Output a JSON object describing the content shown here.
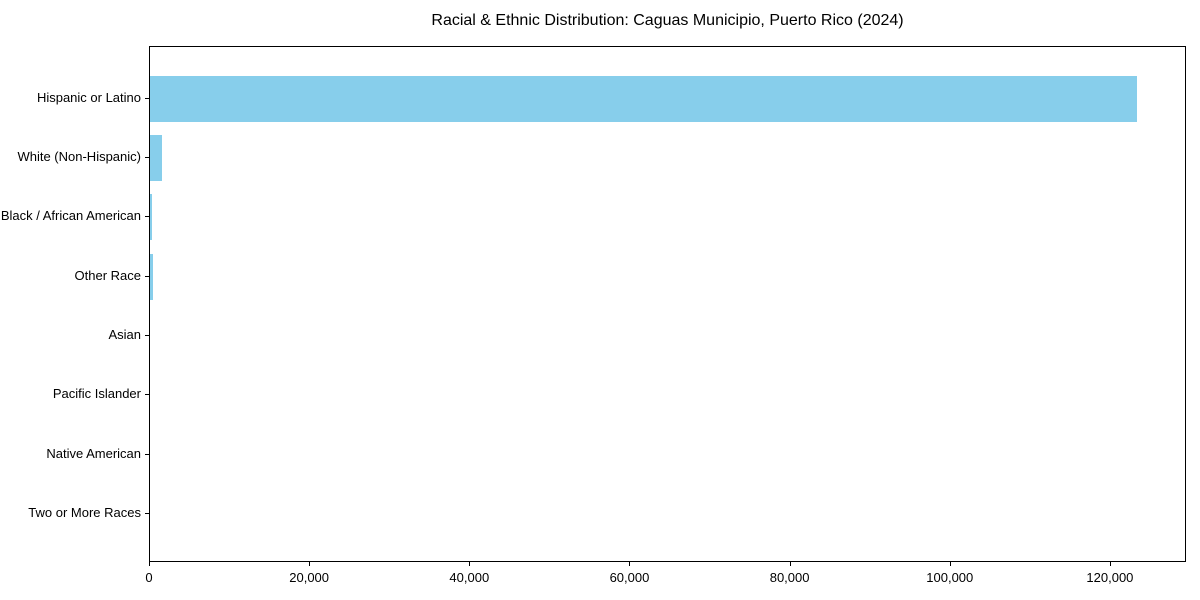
{
  "chart_data": {
    "type": "bar",
    "orientation": "horizontal",
    "title": "Racial & Ethnic Distribution: Caguas Municipio, Puerto Rico (2024)",
    "categories": [
      "Hispanic or Latino",
      "White (Non-Hispanic)",
      "Black / African American",
      "Other Race",
      "Asian",
      "Pacific Islander",
      "Native American",
      "Two or More Races"
    ],
    "values": [
      123300,
      1540,
      310,
      375,
      0,
      0,
      0,
      0
    ],
    "xlabel": "",
    "ylabel": "",
    "xlim": [
      0,
      129500
    ],
    "x_ticks": [
      0,
      20000,
      40000,
      60000,
      80000,
      100000,
      120000
    ],
    "x_tick_labels": [
      "0",
      "20,000",
      "40,000",
      "60,000",
      "80,000",
      "100,000",
      "120,000"
    ],
    "grid": false,
    "legend": "none",
    "bar_color": "#87CEEB",
    "background_color": "#FFFFFF",
    "axis_color": "#000000",
    "text_color": "#000000"
  }
}
